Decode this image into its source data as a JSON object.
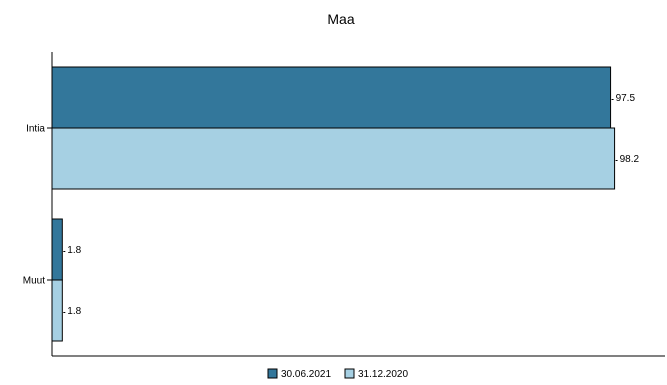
{
  "chart_data": {
    "type": "bar",
    "orientation": "horizontal",
    "title": "Maa",
    "xlabel": "",
    "ylabel": "",
    "categories": [
      "Intia",
      "Muut"
    ],
    "series": [
      {
        "name": "30.06.2021",
        "values": [
          97.5,
          1.8
        ],
        "labels": [
          "97.5",
          "1.8"
        ],
        "color": "#33779b"
      },
      {
        "name": "31.12.2020",
        "values": [
          98.2,
          1.8
        ],
        "labels": [
          "98.2",
          "1.8"
        ],
        "color": "#a6d0e3"
      }
    ],
    "xlim": [
      0,
      107
    ],
    "grid": false,
    "legend_position": "bottom-center"
  }
}
